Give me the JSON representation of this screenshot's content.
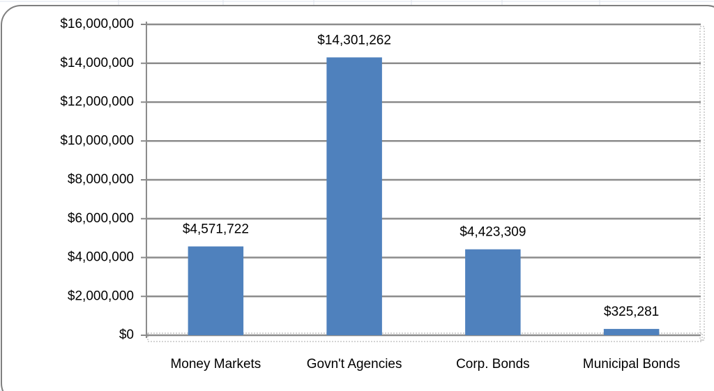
{
  "chart_data": {
    "type": "bar",
    "categories": [
      "Money Markets",
      "Govn't Agencies",
      "Corp. Bonds",
      "Municipal Bonds"
    ],
    "values": [
      4571722,
      14301262,
      4423309,
      325281
    ],
    "value_labels": [
      "$4,571,722",
      "$14,301,262",
      "$4,423,309",
      "$325,281"
    ],
    "color": "#4f81bd",
    "ylim": [
      0,
      16000000
    ],
    "yticks": [
      {
        "value": 0,
        "label": "$0"
      },
      {
        "value": 2000000,
        "label": "$2,000,000"
      },
      {
        "value": 4000000,
        "label": "$4,000,000"
      },
      {
        "value": 6000000,
        "label": "$6,000,000"
      },
      {
        "value": 8000000,
        "label": "$8,000,000"
      },
      {
        "value": 10000000,
        "label": "$10,000,000"
      },
      {
        "value": 12000000,
        "label": "$12,000,000"
      },
      {
        "value": 14000000,
        "label": "$14,000,000"
      },
      {
        "value": 16000000,
        "label": "$16,000,000"
      }
    ],
    "grid": true
  }
}
